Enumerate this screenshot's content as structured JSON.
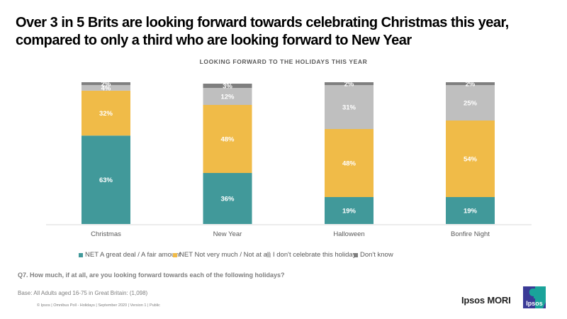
{
  "title": "Over 3 in 5 Brits are looking forward towards celebrating Christmas this year, compared to only a third who are looking forward to New Year",
  "chart_data": {
    "type": "bar",
    "stacked": true,
    "title": "LOOKING FORWARD TO THE HOLIDAYS THIS YEAR",
    "categories": [
      "Christmas",
      "New Year",
      "Halloween",
      "Bonfire Night"
    ],
    "series": [
      {
        "name": "NET A great deal / A fair amount",
        "color": "#41999a",
        "values": [
          63,
          36,
          19,
          19
        ]
      },
      {
        "name": "NET Not very much / Not at all",
        "color": "#f0bb48",
        "values": [
          32,
          48,
          48,
          54
        ]
      },
      {
        "name": "I don't celebrate this holiday",
        "color": "#bfbfbf",
        "values": [
          4,
          12,
          31,
          25
        ]
      },
      {
        "name": "Don't know",
        "color": "#7f7f7f",
        "values": [
          2,
          3,
          2,
          2
        ]
      }
    ],
    "data_labels": true,
    "label_format": "{v}%",
    "ylim": [
      0,
      100
    ],
    "xlabel": "",
    "ylabel": "",
    "legend_position": "bottom",
    "grid": false
  },
  "question": "Q7. How much, if at all, are you looking forward towards each of the following holidays?",
  "base": "Base: All Adults aged 16-75 in Great Britain: (1,098)",
  "footer": "© Ipsos | Omnibus Poll - Holidays  | September 2020 | Version 1 | Public",
  "brand": {
    "name": "Ipsos MORI",
    "logo_text": "Ipsos",
    "logo_colors": {
      "left": "#3a3a96",
      "right": "#1aa39a"
    }
  }
}
